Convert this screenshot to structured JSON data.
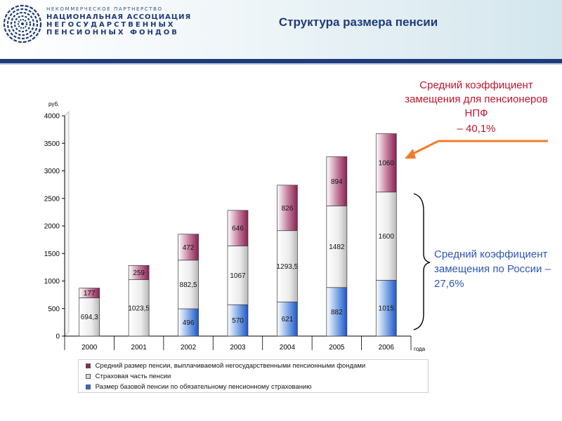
{
  "header": {
    "org_lines": [
      "НЕКОММЕРЧЕСКОЕ ПАРТНЕРСТВО",
      "НАЦИОНАЛЬНАЯ АССОЦИАЦИЯ",
      "НЕГОСУДАРСТВЕННЫХ",
      "ПЕНСИОННЫХ ФОНДОВ"
    ],
    "title": "Структура размера пенсии"
  },
  "notes": {
    "npf_text": "Средний коэффициент замещения для пенсионеров НПФ",
    "npf_value": "– 40,1%",
    "russia_text": "Средний коэффициент замещения по России – 27,6%"
  },
  "colors": {
    "nps": "#8b2a54",
    "insurance": "#d9d9d9",
    "basic": "#2f6fd0",
    "brand": "#1f3a7c",
    "arrow": "#f07c2a"
  },
  "chart_data": {
    "type": "bar",
    "stacked": true,
    "categories": [
      "2000",
      "2001",
      "2002",
      "2003",
      "2004",
      "2005",
      "2006"
    ],
    "y_unit_label": "руб.",
    "x_unit_label": "года",
    "ylim": [
      0,
      4000
    ],
    "yticks": [
      0,
      500,
      1000,
      1500,
      2000,
      2500,
      3000,
      3500,
      4000
    ],
    "grid": false,
    "legend_position": "bottom",
    "series": [
      {
        "name": "Размер базовой пенсии по обязательному пенсионному страхованию",
        "key": "basic",
        "values": [
          0,
          0,
          496,
          570,
          621,
          882,
          1015
        ],
        "labels": [
          "",
          "",
          "496",
          "570",
          "621",
          "882",
          "1015"
        ]
      },
      {
        "name": "Страховая часть пенсии",
        "key": "insurance",
        "values": [
          694.3,
          1023.5,
          882.5,
          1067,
          1293.5,
          1482,
          1600
        ],
        "labels": [
          "694,3",
          "1023,5",
          "882,5",
          "1067",
          "1293,5",
          "1482",
          "1600"
        ]
      },
      {
        "name": "Средний размер пенсии, выплачиваемой негосударственными пенсионными фондами",
        "key": "nps",
        "values": [
          177,
          259,
          472,
          646,
          826,
          894,
          1060
        ],
        "labels": [
          "177",
          "259",
          "472",
          "646",
          "826",
          "894",
          "1060"
        ]
      }
    ]
  }
}
